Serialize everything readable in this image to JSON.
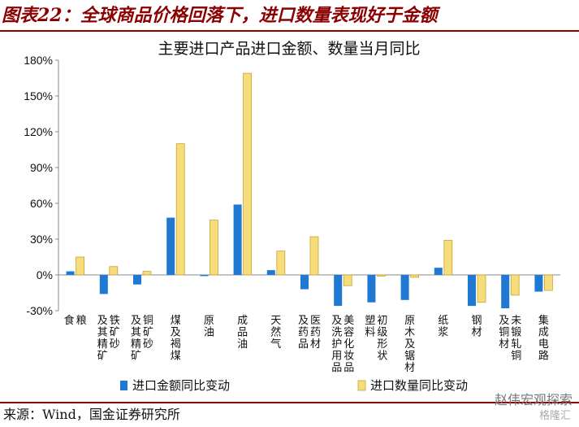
{
  "figure": {
    "title": "图表22：全球商品价格回落下，进口数量表现好于金额",
    "source": "来源：Wind，国金证券研究所",
    "watermark": "赵伟宏观探索",
    "watermark2": "格隆汇"
  },
  "chart_data": {
    "type": "bar",
    "title": "主要进口产品进口金额、数量当月同比",
    "categories": [
      "粮食",
      "铁矿砂及其精矿",
      "铜矿砂及其精矿",
      "煤及褐煤",
      "原油",
      "成品油",
      "天然气",
      "医药材及药品",
      "美容化妆品及洗护用品",
      "初级形状塑料",
      "原木及锯材",
      "纸浆",
      "钢材",
      "未锻轧铜及铜材",
      "集成电路"
    ],
    "category_lines": [
      [
        "粮",
        "食"
      ],
      [
        "铁矿砂",
        "及其精矿"
      ],
      [
        "铜矿砂",
        "及其精矿"
      ],
      [
        "煤及褐煤"
      ],
      [
        "原油"
      ],
      [
        "成品油"
      ],
      [
        "天然气"
      ],
      [
        "医药材",
        "及药品"
      ],
      [
        "美容化妆品",
        "及洗护用品"
      ],
      [
        "初级形状",
        "塑料"
      ],
      [
        "原木及锯材"
      ],
      [
        "纸浆"
      ],
      [
        "钢材"
      ],
      [
        "未锻轧铜",
        "及铜材"
      ],
      [
        "集成电路"
      ]
    ],
    "series": [
      {
        "name": "进口金额同比变动",
        "color": "#1f78d1",
        "values": [
          3,
          -16,
          -8,
          48,
          -1,
          59,
          4,
          -12,
          -26,
          -23,
          -21,
          6,
          -26,
          -28,
          -14
        ]
      },
      {
        "name": "进口数量同比变动",
        "color": "#f5dd7a",
        "values": [
          15,
          7,
          3,
          110,
          46,
          169,
          20,
          32,
          -9,
          -1,
          -2,
          29,
          -23,
          -17,
          -13
        ]
      }
    ],
    "ylim": [
      -30,
      180
    ],
    "yticks": [
      -30,
      0,
      30,
      60,
      90,
      120,
      150,
      180
    ],
    "ytick_suffix": "%",
    "grid": false,
    "legend_position": "bottom"
  }
}
